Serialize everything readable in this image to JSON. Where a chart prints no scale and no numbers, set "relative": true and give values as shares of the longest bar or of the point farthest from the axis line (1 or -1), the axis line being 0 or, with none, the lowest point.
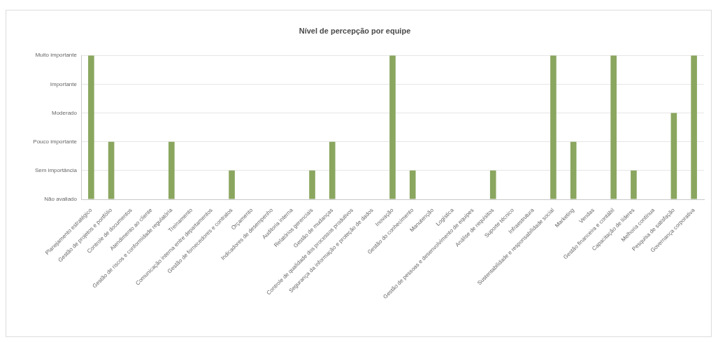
{
  "chart_data": {
    "type": "bar",
    "title": "Nível de percepção por equipe",
    "categories": [
      "Planejamento estratégico",
      "Gestão de projetos e portfólio",
      "Controle de documentos",
      "Atendimento ao cliente",
      "Gestão de riscos e conformidade regulatória",
      "Treinamento",
      "Comunicação interna entre departamentos",
      "Gestão de fornecedores e contratos",
      "Orçamento",
      "Indicadores de desempenho",
      "Auditoria interna",
      "Relatórios gerenciais",
      "Gestão de mudanças",
      "Controle de qualidade dos processos produtivos",
      "Segurança da informação e proteção de dados",
      "Inovação",
      "Gestão do conhecimento",
      "Manutenção",
      "Logística",
      "Gestão de pessoas e desenvolvimento de equipes",
      "Análise de requisitos",
      "Suporte técnico",
      "Infraestrutura",
      "Sustentabilidade e responsabilidade social",
      "Marketing",
      "Vendas",
      "Gestão financeira e contábil",
      "Capacitação de líderes",
      "Melhoria contínua",
      "Pesquisa de satisfação",
      "Governança corporativa"
    ],
    "y_categories": [
      "Muito importante",
      "Importante",
      "Moderado",
      "Pouco importante",
      "Sem importância",
      "Não avaliado"
    ],
    "values": [
      1,
      0.4,
      0,
      0,
      0.4,
      0,
      0,
      0.2,
      0,
      0,
      0,
      0.2,
      0.4,
      0,
      0,
      1,
      0.2,
      0,
      0,
      0,
      0.2,
      0,
      0,
      1,
      0.4,
      0,
      1,
      0.2,
      0,
      0.6,
      1
    ],
    "relative": true,
    "color": "#8aa65f",
    "grid": "y"
  }
}
